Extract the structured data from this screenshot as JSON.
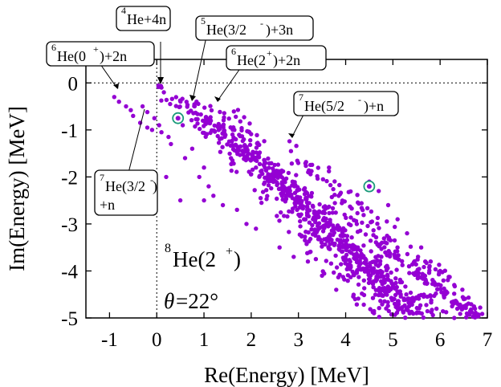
{
  "chart_data": {
    "type": "scatter",
    "xlabel": "Re(Energy) [MeV]",
    "ylabel": "Im(Energy) [MeV]",
    "xlim": [
      -1.5,
      7
    ],
    "ylim": [
      -5,
      0.5
    ],
    "xticks": [
      "-1",
      "0",
      "1",
      "2",
      "3",
      "4",
      "5",
      "6",
      "7"
    ],
    "yticks": [
      "0",
      "-1",
      "-2",
      "-3",
      "-4",
      "-5"
    ],
    "grid": false,
    "marker_color": "#9400d3",
    "highlight_color": "#1a9a7a",
    "annotations": {
      "he4_4n": "He+4n",
      "he5_3n": "He(3/2",
      "he6_0_2n": "He(0",
      "he6_2_2n": "He(2",
      "he7_52_n": "He(5/2",
      "he7_32_n_line1": "He(3/2",
      "he7_32_n_line2": "+n",
      "system_label": "He(2",
      "angle_label": "=22°"
    },
    "series": [
      {
        "branches": [
          {
            "start": [
              0.0,
              0.0
            ],
            "end": [
              6.8,
              -5.0
            ],
            "count": 120,
            "spread": 0.1
          },
          {
            "start": [
              0.3,
              -0.25
            ],
            "end": [
              6.0,
              -5.0
            ],
            "count": 200,
            "spread": 0.22
          },
          {
            "start": [
              0.6,
              -0.35
            ],
            "end": [
              5.6,
              -5.0
            ],
            "count": 220,
            "spread": 0.25
          },
          {
            "start": [
              1.3,
              -0.45
            ],
            "end": [
              5.3,
              -5.0
            ],
            "count": 200,
            "spread": 0.25
          },
          {
            "start": [
              2.6,
              -1.3
            ],
            "end": [
              6.8,
              -5.0
            ],
            "count": 160,
            "spread": 0.3
          },
          {
            "start": [
              1.5,
              -1.5
            ],
            "end": [
              5.0,
              -5.0
            ],
            "count": 120,
            "spread": 0.35
          }
        ],
        "points": [
          [
            -0.9,
            -0.3
          ],
          [
            -0.8,
            -0.4
          ],
          [
            -0.65,
            -0.5
          ],
          [
            -0.55,
            -0.58
          ],
          [
            -0.5,
            -0.7
          ],
          [
            -0.35,
            -0.85
          ],
          [
            -0.2,
            -0.95
          ],
          [
            -0.1,
            -1.0
          ],
          [
            0.1,
            -1.05
          ],
          [
            0.25,
            -1.15
          ],
          [
            -0.3,
            -0.5
          ],
          [
            -0.2,
            -0.62
          ],
          [
            -0.05,
            -0.75
          ],
          [
            0.05,
            -0.9
          ],
          [
            0.3,
            -1.3
          ],
          [
            0.6,
            -1.6
          ],
          [
            0.9,
            -2.0
          ],
          [
            1.1,
            -2.2
          ],
          [
            1.2,
            -2.4
          ],
          [
            1.4,
            -2.6
          ],
          [
            0.55,
            -0.9
          ],
          [
            0.75,
            -1.4
          ],
          [
            1.0,
            -1.8
          ],
          [
            0.15,
            -0.2
          ],
          [
            0.1,
            -0.1
          ],
          [
            1.7,
            -2.7
          ],
          [
            1.9,
            -3.0
          ],
          [
            2.1,
            -3.1
          ],
          [
            0.5,
            -2.5
          ],
          [
            1.0,
            -2.5
          ],
          [
            0.2,
            -2.0
          ],
          [
            2.6,
            -3.5
          ],
          [
            2.9,
            -3.7
          ],
          [
            3.2,
            -3.8
          ],
          [
            3.5,
            -4.1
          ],
          [
            3.8,
            -4.4
          ],
          [
            4.2,
            -4.6
          ],
          [
            4.6,
            -4.9
          ],
          [
            5.5,
            -4.9
          ],
          [
            6.3,
            -5.0
          ],
          [
            4.5,
            -2.1
          ],
          [
            4.7,
            -2.3
          ],
          [
            4.9,
            -2.6
          ],
          [
            5.1,
            -2.9
          ],
          [
            5.3,
            -3.2
          ],
          [
            5.6,
            -3.5
          ],
          [
            5.8,
            -3.8
          ],
          [
            6.0,
            -4.0
          ],
          [
            6.3,
            -4.3
          ],
          [
            6.5,
            -4.6
          ]
        ],
        "highlighted": [
          [
            0.45,
            -0.75
          ],
          [
            4.5,
            -2.2
          ]
        ]
      }
    ]
  }
}
